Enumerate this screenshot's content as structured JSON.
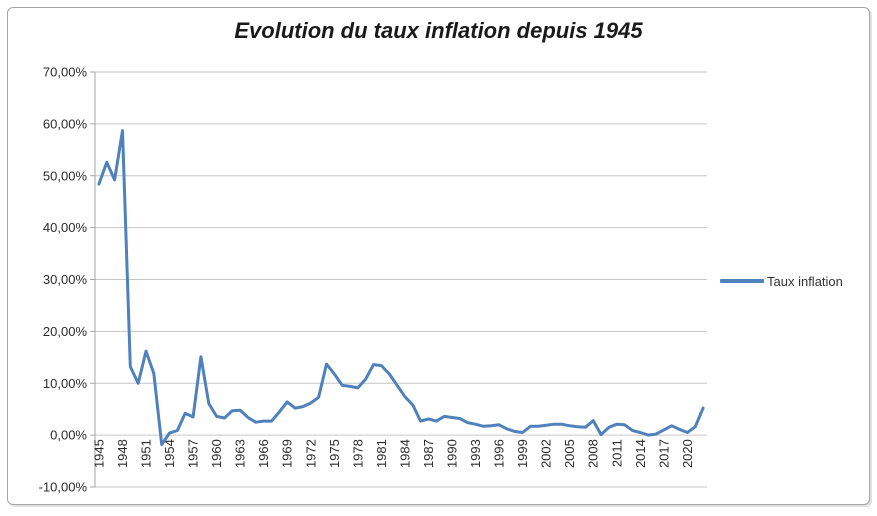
{
  "chart_data": {
    "type": "line",
    "title": "Evolution du taux inflation depuis 1945",
    "xlabel": "",
    "ylabel": "",
    "grid": true,
    "legend_position": "right",
    "y_axis": {
      "min": -10,
      "max": 70,
      "step": 10,
      "format": "percent, French comma decimals"
    },
    "y_tick_labels": [
      "70,00%",
      "60,00%",
      "50,00%",
      "40,00%",
      "30,00%",
      "20,00%",
      "10,00%",
      "0,00%",
      "-10,00%"
    ],
    "x_tick_labels": [
      "1945",
      "1948",
      "1951",
      "1954",
      "1957",
      "1960",
      "1963",
      "1966",
      "1969",
      "1972",
      "1975",
      "1978",
      "1981",
      "1984",
      "1987",
      "1990",
      "1993",
      "1996",
      "1999",
      "2002",
      "2005",
      "2008",
      "2011",
      "2014",
      "2017",
      "2020"
    ],
    "x_tick_every_n_categories": 3,
    "x": [
      1945,
      1946,
      1947,
      1948,
      1949,
      1950,
      1951,
      1952,
      1953,
      1954,
      1955,
      1956,
      1957,
      1958,
      1959,
      1960,
      1961,
      1962,
      1963,
      1964,
      1965,
      1966,
      1967,
      1968,
      1969,
      1970,
      1971,
      1972,
      1973,
      1974,
      1975,
      1976,
      1977,
      1978,
      1979,
      1980,
      1981,
      1982,
      1983,
      1984,
      1985,
      1986,
      1987,
      1988,
      1989,
      1990,
      1991,
      1992,
      1993,
      1994,
      1995,
      1996,
      1997,
      1998,
      1999,
      2000,
      2001,
      2002,
      2003,
      2004,
      2005,
      2006,
      2007,
      2008,
      2009,
      2010,
      2011,
      2012,
      2013,
      2014,
      2015,
      2016,
      2017,
      2018,
      2019,
      2020,
      2021,
      2022
    ],
    "series": [
      {
        "name": "Taux inflation",
        "color": "#4F81BD",
        "values": [
          48.4,
          52.6,
          49.2,
          58.7,
          13.2,
          10.0,
          16.2,
          11.9,
          -1.8,
          0.4,
          0.9,
          4.2,
          3.5,
          15.1,
          6.1,
          3.6,
          3.3,
          4.7,
          4.8,
          3.4,
          2.5,
          2.7,
          2.7,
          4.5,
          6.4,
          5.2,
          5.5,
          6.2,
          7.3,
          13.7,
          11.8,
          9.6,
          9.4,
          9.1,
          10.8,
          13.6,
          13.4,
          11.8,
          9.6,
          7.4,
          5.8,
          2.7,
          3.1,
          2.7,
          3.6,
          3.4,
          3.2,
          2.4,
          2.1,
          1.7,
          1.8,
          2.0,
          1.2,
          0.7,
          0.5,
          1.7,
          1.7,
          1.9,
          2.1,
          2.1,
          1.8,
          1.6,
          1.5,
          2.8,
          0.1,
          1.5,
          2.1,
          2.0,
          0.9,
          0.5,
          0.0,
          0.2,
          1.0,
          1.8,
          1.1,
          0.5,
          1.6,
          5.2
        ]
      }
    ],
    "colors": {
      "line": "#4F81BD",
      "gridline": "#c6c6c6",
      "axis": "#a6a6a6",
      "text": "#2b2b2b",
      "frame_border": "#a6a6a6",
      "background": "#ffffff"
    }
  }
}
